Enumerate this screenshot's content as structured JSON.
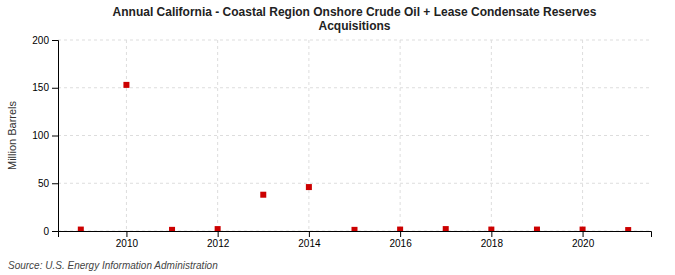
{
  "chart_data": {
    "type": "scatter",
    "title": "Annual California - Coastal Region Onshore Crude Oil + Lease Condensate Reserves\nAcquisitions",
    "y_label": "Million Barrels",
    "annotations": [
      "Source: U.S. Energy Information Administration"
    ],
    "x": [
      2009,
      2010,
      2011,
      2012,
      2013,
      2014,
      2015,
      2016,
      2017,
      2018,
      2019,
      2020,
      2021
    ],
    "values": [
      1.5,
      153.0,
      1.2,
      2.0,
      38.0,
      46.0,
      1.2,
      1.5,
      2.0,
      1.5,
      1.5,
      1.5,
      1.0
    ],
    "color": "#cc0000",
    "marker": "square",
    "xlim": [
      2008.5,
      2021.5
    ],
    "xticks": [
      2010,
      2012,
      2014,
      2016,
      2018,
      2020
    ],
    "ylim": [
      0,
      200
    ],
    "yticks": [
      0,
      50,
      100,
      150,
      200
    ],
    "grid": true
  }
}
